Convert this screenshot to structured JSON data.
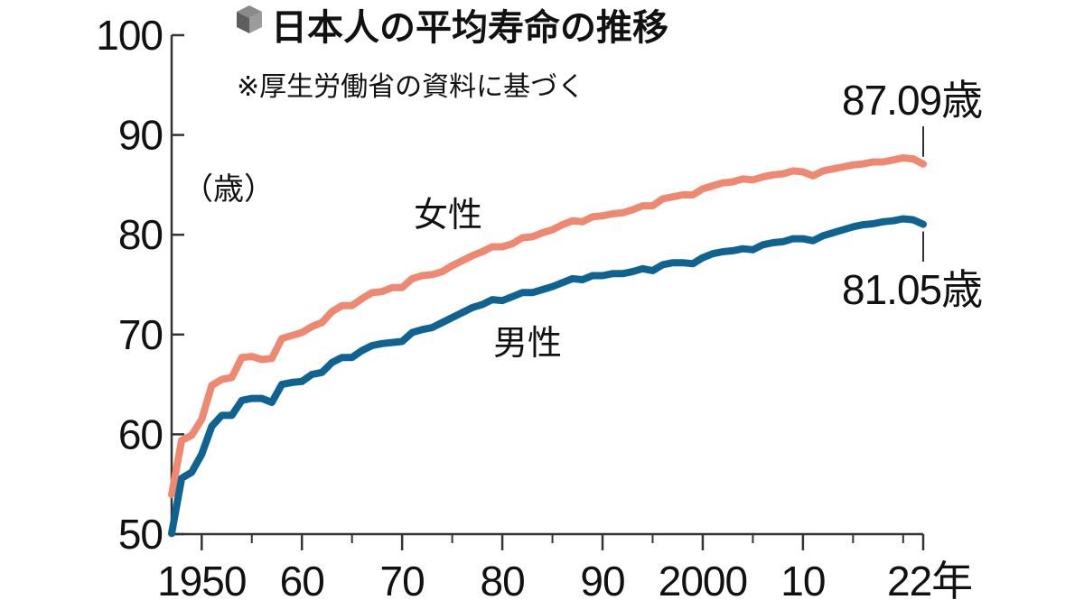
{
  "chart_data": {
    "type": "line",
    "title": "日本人の平均寿命の推移",
    "subtitle": "※厚生労働省の資料に基づく",
    "ylabel": "（歳）",
    "ylim": [
      50,
      100
    ],
    "xlim": [
      1947,
      2022
    ],
    "y_ticks": [
      50,
      60,
      70,
      80,
      90,
      100
    ],
    "y_tick_labels": [
      "50",
      "60",
      "70",
      "80",
      "90",
      "100"
    ],
    "x_ticks": [
      1950,
      1960,
      1970,
      1980,
      1990,
      2000,
      2010,
      2022
    ],
    "x_tick_labels": [
      "1950",
      "60",
      "70",
      "80",
      "90",
      "2000",
      "10",
      "22年"
    ],
    "grid": false,
    "colors": {
      "female": "#ee8870",
      "male": "#0e6391",
      "axis": "#333333",
      "title_icon": "#6a6a6a"
    },
    "title_icon": "cube-icon",
    "series": [
      {
        "name": "女性",
        "x": [
          1947,
          1948,
          1949,
          1950,
          1951,
          1952,
          1953,
          1954,
          1955,
          1956,
          1957,
          1958,
          1959,
          1960,
          1961,
          1962,
          1963,
          1964,
          1965,
          1966,
          1967,
          1968,
          1969,
          1970,
          1971,
          1972,
          1973,
          1974,
          1975,
          1976,
          1977,
          1978,
          1979,
          1980,
          1981,
          1982,
          1983,
          1984,
          1985,
          1986,
          1987,
          1988,
          1989,
          1990,
          1991,
          1992,
          1993,
          1994,
          1995,
          1996,
          1997,
          1998,
          1999,
          2000,
          2001,
          2002,
          2003,
          2004,
          2005,
          2006,
          2007,
          2008,
          2009,
          2010,
          2011,
          2012,
          2013,
          2014,
          2015,
          2016,
          2017,
          2018,
          2019,
          2020,
          2021,
          2022
        ],
        "values": [
          53.96,
          59.4,
          59.9,
          61.5,
          64.9,
          65.5,
          65.7,
          67.7,
          67.8,
          67.5,
          67.6,
          69.6,
          69.9,
          70.2,
          70.8,
          71.2,
          72.3,
          72.9,
          72.9,
          73.6,
          74.2,
          74.3,
          74.7,
          74.7,
          75.6,
          75.9,
          76.0,
          76.3,
          76.9,
          77.4,
          77.9,
          78.3,
          78.8,
          78.8,
          79.1,
          79.7,
          79.8,
          80.2,
          80.5,
          81.0,
          81.4,
          81.3,
          81.8,
          81.9,
          82.1,
          82.2,
          82.5,
          82.9,
          82.9,
          83.6,
          83.8,
          84.0,
          84.0,
          84.6,
          84.9,
          85.2,
          85.3,
          85.6,
          85.5,
          85.8,
          86.0,
          86.1,
          86.4,
          86.3,
          85.9,
          86.4,
          86.6,
          86.8,
          87.0,
          87.1,
          87.3,
          87.3,
          87.5,
          87.7,
          87.6,
          87.09
        ]
      },
      {
        "name": "男性",
        "x": [
          1947,
          1948,
          1949,
          1950,
          1951,
          1952,
          1953,
          1954,
          1955,
          1956,
          1957,
          1958,
          1959,
          1960,
          1961,
          1962,
          1963,
          1964,
          1965,
          1966,
          1967,
          1968,
          1969,
          1970,
          1971,
          1972,
          1973,
          1974,
          1975,
          1976,
          1977,
          1978,
          1979,
          1980,
          1981,
          1982,
          1983,
          1984,
          1985,
          1986,
          1987,
          1988,
          1989,
          1990,
          1991,
          1992,
          1993,
          1994,
          1995,
          1996,
          1997,
          1998,
          1999,
          2000,
          2001,
          2002,
          2003,
          2004,
          2005,
          2006,
          2007,
          2008,
          2009,
          2010,
          2011,
          2012,
          2013,
          2014,
          2015,
          2016,
          2017,
          2018,
          2019,
          2020,
          2021,
          2022
        ],
        "values": [
          50.06,
          55.6,
          56.2,
          58.0,
          60.8,
          61.9,
          61.9,
          63.4,
          63.6,
          63.6,
          63.2,
          65.0,
          65.2,
          65.3,
          66.0,
          66.2,
          67.2,
          67.7,
          67.7,
          68.4,
          68.9,
          69.1,
          69.2,
          69.3,
          70.2,
          70.5,
          70.7,
          71.2,
          71.7,
          72.2,
          72.7,
          73.0,
          73.5,
          73.4,
          73.8,
          74.2,
          74.2,
          74.5,
          74.8,
          75.2,
          75.6,
          75.5,
          75.9,
          75.9,
          76.1,
          76.1,
          76.3,
          76.6,
          76.4,
          77.0,
          77.2,
          77.2,
          77.1,
          77.7,
          78.1,
          78.3,
          78.4,
          78.6,
          78.5,
          79.0,
          79.2,
          79.3,
          79.6,
          79.6,
          79.4,
          79.9,
          80.2,
          80.5,
          80.8,
          81.0,
          81.1,
          81.3,
          81.4,
          81.6,
          81.5,
          81.05
        ]
      }
    ],
    "annotations": {
      "female_end": "87.09歳",
      "male_end": "81.05歳"
    }
  }
}
